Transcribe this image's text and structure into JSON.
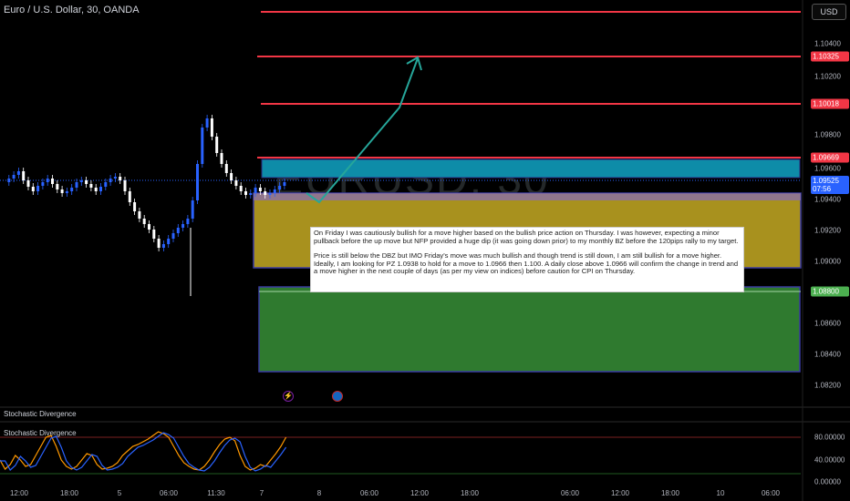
{
  "header": {
    "symbol_title": "Euro / U.S. Dollar, 30, OANDA",
    "currency_button": "USD"
  },
  "watermark": "EURUSD, 30",
  "price_axis": {
    "ticks": [
      "1.10400",
      "1.10200",
      "1.09800",
      "1.09600",
      "1.09400",
      "1.09200",
      "1.09000",
      "1.08600",
      "1.08400",
      "1.08200"
    ],
    "labels": [
      {
        "text": "1.10325",
        "color": "#f23645"
      },
      {
        "text": "1.10018",
        "color": "#f23645"
      },
      {
        "text": "1.09669",
        "color": "#f23645"
      },
      {
        "text": "1.09525",
        "sub": "07:56",
        "color": "#2962ff"
      },
      {
        "text": "1.08800",
        "color": "#4caf50"
      }
    ]
  },
  "note": {
    "paragraphs": [
      "On Friday I was cautiously bullish for a move higher based on the bullish price action on Thursday. I was however, expecting a minor pullback before the up move but NFP provided a huge dip (it was going down prior) to my monthly BZ before the 120pips rally to my target.",
      "Price is still below the DBZ but IMO Friday's move was much bullish and though trend is still down, I am still bullish for a move higher. Ideally, I am looking for PZ 1.0938 to hold for a move to 1.0966 then 1.100. A daily close above 1.0966 will confirm the change in trend and a move higher in the next couple of days (as per my view on indices) before caution for CPI on Thursday."
    ]
  },
  "indicator": {
    "pane_title": "Stochastic Divergence",
    "legend_title": "Stochastic Divergence",
    "ticks": [
      "80.00000",
      "40.00000",
      "0.00000"
    ]
  },
  "time_axis": {
    "ticks": [
      "12:00",
      "18:00",
      "5",
      "06:00",
      "11:30",
      "7",
      "8",
      "06:00",
      "12:00",
      "18:00",
      "06:00",
      "12:00",
      "18:00",
      "10",
      "06:00"
    ]
  },
  "colors": {
    "up": "#2962ff",
    "down": "#ffffff",
    "resistance": "#f23645",
    "support_zone": "#4caf50",
    "demand_zone": "#b8a22a",
    "supply_zone": "#00acc1",
    "arrow": "#26a69a"
  }
}
